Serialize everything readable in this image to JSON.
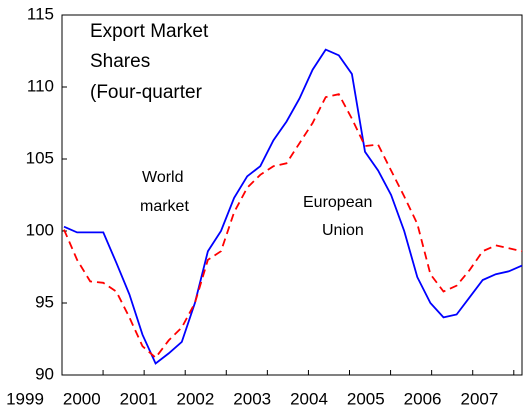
{
  "chart_data": {
    "type": "line",
    "title_lines": [
      "Export Market",
      "Shares",
      "(Four-quarter"
    ],
    "annotations": [
      [
        "World",
        "market"
      ],
      [
        "European",
        "Union"
      ]
    ],
    "x_labels": [
      "1999",
      "2000",
      "2001",
      "2002",
      "2003",
      "2004",
      "2005",
      "2006",
      "2007"
    ],
    "ylim": [
      90,
      115
    ],
    "yticks": [
      90,
      95,
      100,
      105,
      110,
      115
    ],
    "series": [
      {
        "color": "#0000ff",
        "dash": "solid",
        "values": [
          100.3,
          99.9,
          99.9,
          99.9,
          97.8,
          95.6,
          92.8,
          90.8,
          91.5,
          92.3,
          95,
          98.6,
          100,
          102.3,
          103.8,
          104.5,
          106.3,
          107.6,
          109.2,
          111.2,
          112.6,
          112.2,
          110.9,
          105.5,
          104.2,
          102.5,
          100,
          96.8,
          95,
          94,
          94.2,
          95.4,
          96.6,
          97,
          97.2,
          97.6
        ]
      },
      {
        "color": "#ff0000",
        "dash": "dashed",
        "values": [
          100.1,
          98,
          96.5,
          96.4,
          95.8,
          94,
          92,
          91.2,
          92.4,
          93.3,
          95,
          98,
          98.6,
          101.3,
          103,
          103.9,
          104.5,
          104.7,
          106.1,
          107.5,
          109.3,
          109.5,
          107.8,
          105.9,
          106,
          104.2,
          102.4,
          100.5,
          97,
          95.8,
          96.2,
          97.3,
          98.6,
          99,
          98.8,
          98.6
        ]
      }
    ]
  }
}
